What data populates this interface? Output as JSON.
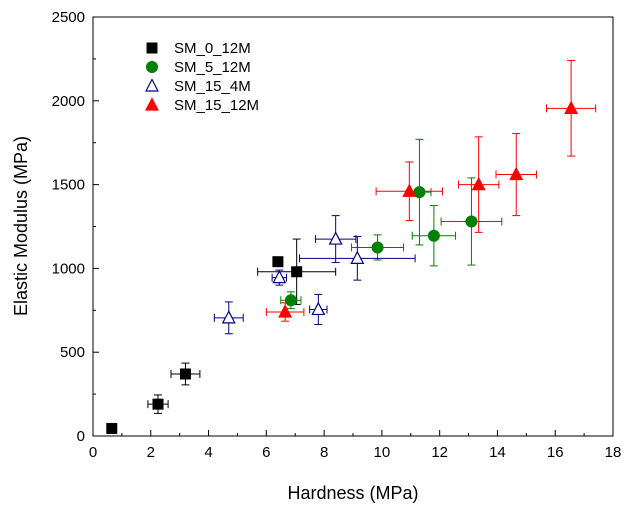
{
  "chart_data": {
    "type": "scatter",
    "xlabel": "Hardness (MPa)",
    "ylabel": "Elastic Modulus (MPa)",
    "xlim": [
      0,
      18
    ],
    "ylim": [
      0,
      2500
    ],
    "x_ticks": [
      0,
      2,
      4,
      6,
      8,
      10,
      12,
      14,
      16,
      18
    ],
    "y_ticks": [
      0,
      500,
      1000,
      1500,
      2000,
      2500
    ],
    "grid": false,
    "legend_position": "top-left",
    "series": [
      {
        "name": "SM_0_12M",
        "marker": "square",
        "color": "#000000",
        "fill": "#000000",
        "points": [
          {
            "x": 0.65,
            "y": 45,
            "xerr": 0,
            "yerr": 0
          },
          {
            "x": 2.25,
            "y": 190,
            "xerr": 0.35,
            "yerr": 55
          },
          {
            "x": 3.2,
            "y": 370,
            "xerr": 0.5,
            "yerr": 65
          },
          {
            "x": 6.4,
            "y": 1040,
            "xerr": 0,
            "yerr": 0
          },
          {
            "x": 7.05,
            "y": 980,
            "xerr": 1.35,
            "yerr": 195
          }
        ]
      },
      {
        "name": "SM_5_12M",
        "marker": "circle",
        "color": "#008000",
        "fill": "#008000",
        "points": [
          {
            "x": 6.85,
            "y": 810,
            "xerr": 0.35,
            "yerr": 50
          },
          {
            "x": 9.85,
            "y": 1125,
            "xerr": 0.9,
            "yerr": 75
          },
          {
            "x": 11.3,
            "y": 1455,
            "xerr": 0.4,
            "yerr": 315
          },
          {
            "x": 11.8,
            "y": 1195,
            "xerr": 0.75,
            "yerr": 180
          },
          {
            "x": 13.1,
            "y": 1280,
            "xerr": 1.05,
            "yerr": 260
          }
        ]
      },
      {
        "name": "SM_15_4M",
        "marker": "triangle-open",
        "color": "#000080",
        "fill": "none",
        "points": [
          {
            "x": 4.7,
            "y": 705,
            "xerr": 0.5,
            "yerr": 95
          },
          {
            "x": 6.45,
            "y": 945,
            "xerr": 0.25,
            "yerr": 45
          },
          {
            "x": 7.8,
            "y": 755,
            "xerr": 0.3,
            "yerr": 90
          },
          {
            "x": 8.4,
            "y": 1175,
            "xerr": 0.7,
            "yerr": 140
          },
          {
            "x": 9.15,
            "y": 1060,
            "xerr": 2.0,
            "yerr": 130
          }
        ]
      },
      {
        "name": "SM_15_12M",
        "marker": "triangle",
        "color": "#ff0000",
        "fill": "#ff0000",
        "points": [
          {
            "x": 6.65,
            "y": 740,
            "xerr": 0.65,
            "yerr": 55
          },
          {
            "x": 10.95,
            "y": 1460,
            "xerr": 1.15,
            "yerr": 175
          },
          {
            "x": 13.35,
            "y": 1500,
            "xerr": 0.7,
            "yerr": 285
          },
          {
            "x": 14.65,
            "y": 1560,
            "xerr": 0.7,
            "yerr": 245
          },
          {
            "x": 16.55,
            "y": 1955,
            "xerr": 0.85,
            "yerr": 285
          }
        ]
      }
    ]
  }
}
